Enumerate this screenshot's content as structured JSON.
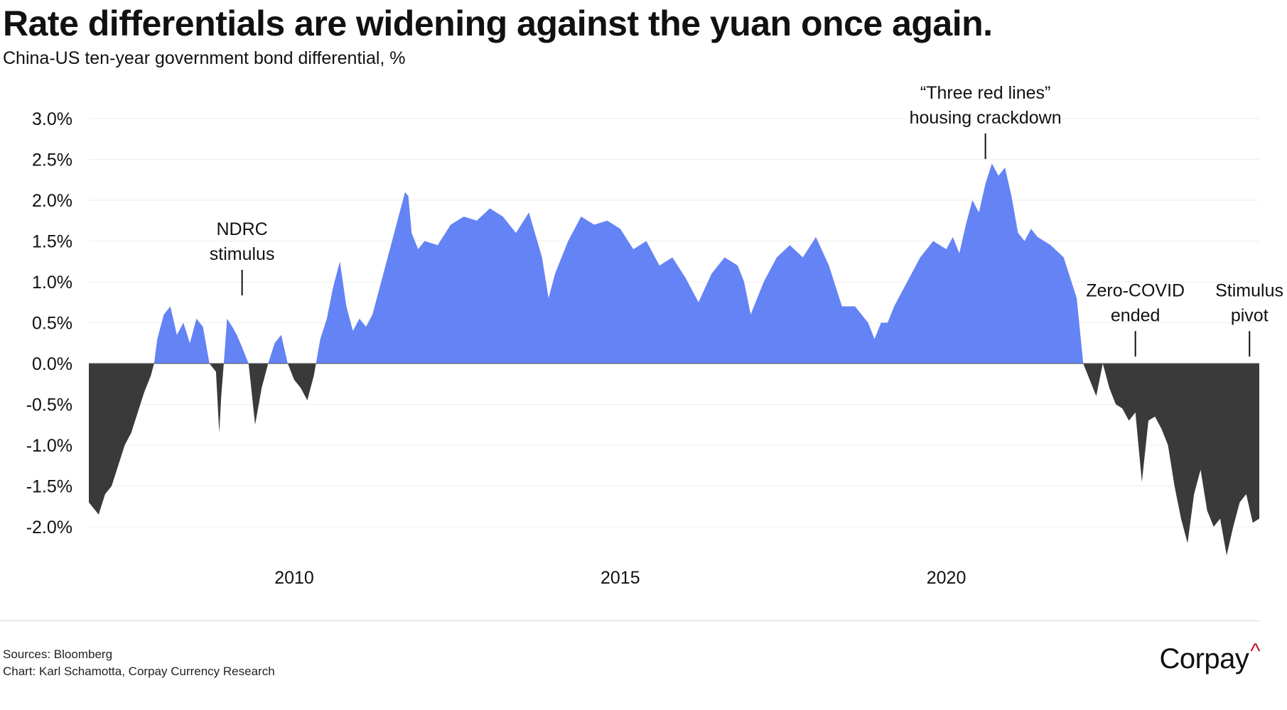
{
  "title": "Rate differentials are widening against the yuan once again.",
  "subtitle": "China-US ten-year government bond differential, %",
  "footer": {
    "sources": "Sources: Bloomberg",
    "credit": "Chart: Karl Schamotta, Corpay Currency Research"
  },
  "logo": {
    "text": "Corpay",
    "mark": "^"
  },
  "colors": {
    "positive": "#6483f5",
    "negative": "#3a3a3a",
    "grid": "#ededed",
    "logo_accent": "#c8102e"
  },
  "chart_data": {
    "type": "area",
    "title": "Rate differentials are widening against the yuan once again.",
    "ylabel": "China-US ten-year government bond differential, %",
    "xlim": [
      2006.85,
      2024.8
    ],
    "ylim": [
      -2.4,
      3.1
    ],
    "y_ticks": [
      3.0,
      2.5,
      2.0,
      1.5,
      1.0,
      0.5,
      0.0,
      -0.5,
      -1.0,
      -1.5,
      -2.0
    ],
    "y_tick_labels": [
      "3.0%",
      "2.5%",
      "2.0%",
      "1.5%",
      "1.0%",
      "0.5%",
      "0.0%",
      "-0.5%",
      "-1.0%",
      "-1.5%",
      "-2.0%"
    ],
    "x_ticks": [
      2010,
      2015,
      2020
    ],
    "x_tick_labels": [
      "2010",
      "2015",
      "2020"
    ],
    "grid": true,
    "series": [
      {
        "x": [
          2006.85,
          2007.0,
          2007.1,
          2007.2,
          2007.3,
          2007.4,
          2007.5,
          2007.6,
          2007.7,
          2007.8,
          2007.85,
          2007.9,
          2008.0,
          2008.1,
          2008.2,
          2008.3,
          2008.4,
          2008.5,
          2008.6,
          2008.7,
          2008.8,
          2008.85,
          2008.88,
          2008.92,
          2008.97,
          2009.05,
          2009.12,
          2009.2,
          2009.3,
          2009.4,
          2009.5,
          2009.6,
          2009.7,
          2009.8,
          2009.9,
          2010.0,
          2010.1,
          2010.2,
          2010.3,
          2010.4,
          2010.5,
          2010.6,
          2010.7,
          2010.8,
          2010.9,
          2011.0,
          2011.1,
          2011.2,
          2011.3,
          2011.4,
          2011.5,
          2011.6,
          2011.7,
          2011.75,
          2011.8,
          2011.9,
          2012.0,
          2012.2,
          2012.4,
          2012.6,
          2012.8,
          2013.0,
          2013.2,
          2013.4,
          2013.6,
          2013.8,
          2013.9,
          2014.0,
          2014.2,
          2014.4,
          2014.6,
          2014.8,
          2015.0,
          2015.2,
          2015.4,
          2015.6,
          2015.8,
          2016.0,
          2016.2,
          2016.4,
          2016.6,
          2016.8,
          2016.9,
          2017.0,
          2017.2,
          2017.4,
          2017.6,
          2017.8,
          2018.0,
          2018.2,
          2018.4,
          2018.6,
          2018.8,
          2018.9,
          2019.0,
          2019.1,
          2019.2,
          2019.4,
          2019.6,
          2019.8,
          2020.0,
          2020.1,
          2020.2,
          2020.3,
          2020.4,
          2020.5,
          2020.6,
          2020.7,
          2020.8,
          2020.9,
          2021.0,
          2021.1,
          2021.2,
          2021.3,
          2021.4,
          2021.6,
          2021.8,
          2022.0,
          2022.1,
          2022.2,
          2022.3,
          2022.4,
          2022.5,
          2022.6,
          2022.7,
          2022.8,
          2022.9,
          2023.0,
          2023.1,
          2023.2,
          2023.3,
          2023.4,
          2023.5,
          2023.6,
          2023.7,
          2023.8,
          2023.9,
          2024.0,
          2024.1,
          2024.2,
          2024.3,
          2024.4,
          2024.5,
          2024.6,
          2024.7,
          2024.8
        ],
        "y": [
          -1.7,
          -1.85,
          -1.6,
          -1.5,
          -1.25,
          -1.0,
          -0.85,
          -0.6,
          -0.35,
          -0.15,
          0.0,
          0.3,
          0.6,
          0.7,
          0.35,
          0.5,
          0.25,
          0.55,
          0.45,
          0.0,
          -0.1,
          -0.85,
          -0.4,
          0.0,
          0.55,
          0.45,
          0.35,
          0.2,
          0.0,
          -0.75,
          -0.3,
          0.0,
          0.25,
          0.35,
          0.0,
          -0.2,
          -0.3,
          -0.45,
          -0.15,
          0.3,
          0.55,
          0.95,
          1.25,
          0.7,
          0.4,
          0.55,
          0.45,
          0.6,
          0.9,
          1.2,
          1.5,
          1.8,
          2.1,
          2.05,
          1.6,
          1.4,
          1.5,
          1.45,
          1.7,
          1.8,
          1.75,
          1.9,
          1.8,
          1.6,
          1.85,
          1.3,
          0.8,
          1.1,
          1.5,
          1.8,
          1.7,
          1.75,
          1.65,
          1.4,
          1.5,
          1.2,
          1.3,
          1.05,
          0.75,
          1.1,
          1.3,
          1.2,
          1.0,
          0.6,
          1.0,
          1.3,
          1.45,
          1.3,
          1.55,
          1.2,
          0.7,
          0.7,
          0.5,
          0.3,
          0.5,
          0.5,
          0.7,
          1.0,
          1.3,
          1.5,
          1.4,
          1.55,
          1.35,
          1.7,
          2.0,
          1.85,
          2.2,
          2.45,
          2.3,
          2.4,
          2.05,
          1.6,
          1.5,
          1.65,
          1.55,
          1.45,
          1.3,
          0.8,
          0.0,
          -0.2,
          -0.4,
          0.0,
          -0.3,
          -0.5,
          -0.55,
          -0.7,
          -0.6,
          -1.45,
          -0.7,
          -0.65,
          -0.8,
          -1.0,
          -1.5,
          -1.9,
          -2.2,
          -1.6,
          -1.3,
          -1.8,
          -2.0,
          -1.9,
          -2.35,
          -2.0,
          -1.7,
          -1.6,
          -1.95,
          -1.9
        ]
      }
    ],
    "annotations": [
      {
        "lines": [
          "NDRC",
          "stimulus"
        ],
        "x": 2009.2,
        "y": 0.8
      },
      {
        "lines": [
          "“Three red lines”",
          "housing crackdown"
        ],
        "x": 2020.6,
        "y": 2.47
      },
      {
        "lines": [
          "Zero-COVID",
          "ended"
        ],
        "x": 2022.9,
        "y": 0.05
      },
      {
        "lines": [
          "Stimulus",
          "pivot"
        ],
        "x": 2024.65,
        "y": 0.05
      }
    ]
  }
}
